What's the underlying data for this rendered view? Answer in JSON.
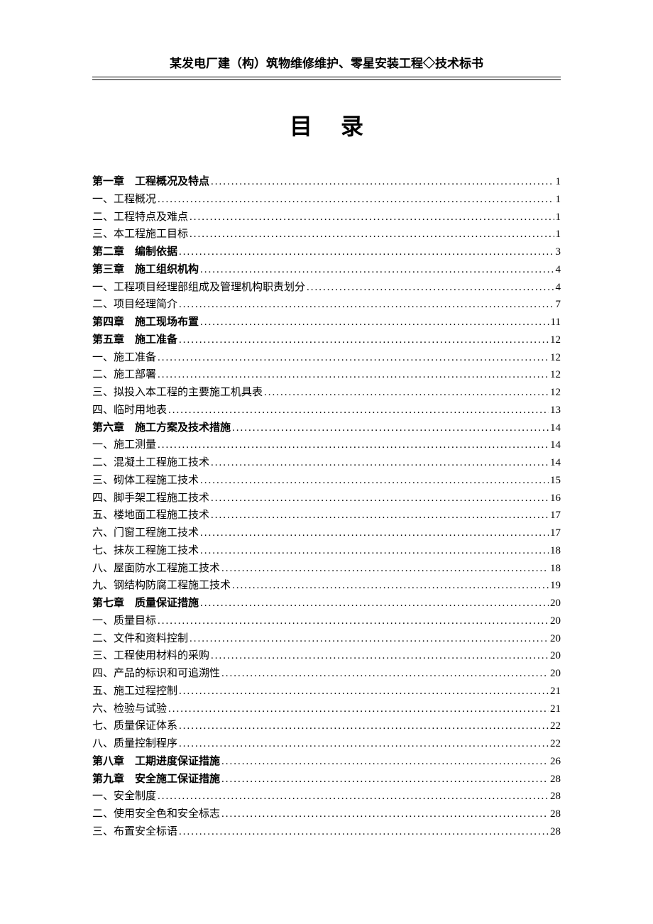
{
  "header": {
    "title": "某发电厂建（构）筑物维修维护、零星安装工程◇技术标书"
  },
  "page_title": "目录",
  "toc": {
    "entries": [
      {
        "label": "第一章　工程概况及特点",
        "page": "1",
        "chapter": true
      },
      {
        "label": "一、工程概况",
        "page": "1",
        "chapter": false
      },
      {
        "label": "二、工程特点及难点",
        "page": "1",
        "chapter": false
      },
      {
        "label": "三、本工程施工目标",
        "page": "1",
        "chapter": false
      },
      {
        "label": "第二章　编制依据",
        "page": "3",
        "chapter": true
      },
      {
        "label": "第三章　施工组织机构",
        "page": "4",
        "chapter": true
      },
      {
        "label": "一、工程项目经理部组成及管理机构职责划分",
        "page": "4",
        "chapter": false
      },
      {
        "label": "二、项目经理简介",
        "page": "7",
        "chapter": false
      },
      {
        "label": "第四章　施工现场布置",
        "page": "11",
        "chapter": true
      },
      {
        "label": "第五章　施工准备",
        "page": "12",
        "chapter": true
      },
      {
        "label": "一、施工准备",
        "page": "12",
        "chapter": false
      },
      {
        "label": "二、施工部署",
        "page": "12",
        "chapter": false
      },
      {
        "label": "三、拟投入本工程的主要施工机具表",
        "page": "12",
        "chapter": false
      },
      {
        "label": "四、临时用地表",
        "page": "13",
        "chapter": false
      },
      {
        "label": "第六章　施工方案及技术措施",
        "page": "14",
        "chapter": true
      },
      {
        "label": "一、施工测量",
        "page": "14",
        "chapter": false
      },
      {
        "label": "二、混凝土工程施工技术",
        "page": "14",
        "chapter": false
      },
      {
        "label": "三、砌体工程施工技术",
        "page": "15",
        "chapter": false
      },
      {
        "label": "四、脚手架工程施工技术",
        "page": "16",
        "chapter": false
      },
      {
        "label": "五、楼地面工程施工技术",
        "page": "17",
        "chapter": false
      },
      {
        "label": "六、门窗工程施工技术",
        "page": "17",
        "chapter": false
      },
      {
        "label": "七、抹灰工程施工技术",
        "page": "18",
        "chapter": false
      },
      {
        "label": "八、屋面防水工程施工技术",
        "page": "18",
        "chapter": false
      },
      {
        "label": "九、钢结构防腐工程施工技术",
        "page": "19",
        "chapter": false
      },
      {
        "label": "第七章　质量保证措施",
        "page": "20",
        "chapter": true
      },
      {
        "label": "一、质量目标",
        "page": "20",
        "chapter": false
      },
      {
        "label": "二、文件和资料控制",
        "page": "20",
        "chapter": false
      },
      {
        "label": "三、工程使用材料的采购",
        "page": "20",
        "chapter": false
      },
      {
        "label": "四、产品的标识和可追溯性",
        "page": "20",
        "chapter": false
      },
      {
        "label": "五、施工过程控制",
        "page": "21",
        "chapter": false
      },
      {
        "label": "六、检验与试验",
        "page": "21",
        "chapter": false
      },
      {
        "label": "七、质量保证体系",
        "page": "22",
        "chapter": false
      },
      {
        "label": "八、质量控制程序",
        "page": "22",
        "chapter": false
      },
      {
        "label": "第八章　工期进度保证措施",
        "page": "26",
        "chapter": true
      },
      {
        "label": "第九章　安全施工保证措施",
        "page": "28",
        "chapter": true
      },
      {
        "label": "一、安全制度",
        "page": "28",
        "chapter": false
      },
      {
        "label": "二、使用安全色和安全标志",
        "page": "28",
        "chapter": false
      },
      {
        "label": "三、布置安全标语",
        "page": "28",
        "chapter": false
      }
    ]
  }
}
